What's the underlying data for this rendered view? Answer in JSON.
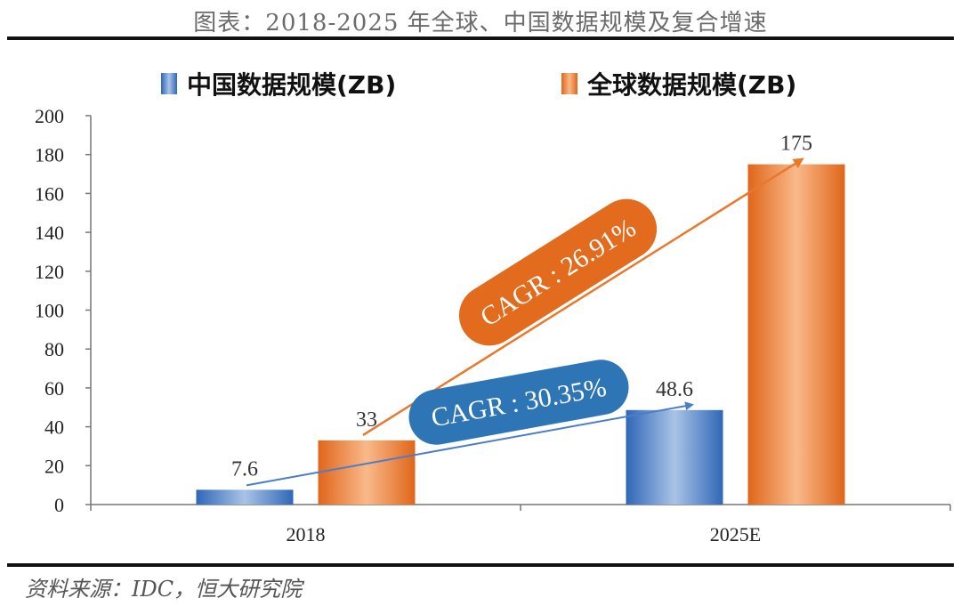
{
  "title": "图表：2018-2025 年全球、中国数据规模及复合增速",
  "source": "资料来源：IDC，恒大研究院",
  "chart_data": {
    "type": "bar",
    "categories": [
      "2018",
      "2025E"
    ],
    "series": [
      {
        "name": "中国数据规模(ZB)",
        "values": [
          7.6,
          48.6
        ],
        "color": "#4a7ec9"
      },
      {
        "name": "全球数据规模(ZB)",
        "values": [
          33,
          175
        ],
        "color": "#e8782c"
      }
    ],
    "value_labels": [
      [
        "7.6",
        "48.6"
      ],
      [
        "33",
        "175"
      ]
    ],
    "ylim": [
      0,
      200
    ],
    "yticks": [
      0,
      20,
      40,
      60,
      80,
      100,
      120,
      140,
      160,
      180,
      200
    ],
    "xlabel": "",
    "ylabel": "",
    "grid": false,
    "legend_position": "top",
    "annotations": [
      {
        "text": "CAGR : 30.35%",
        "series": "中国数据规模(ZB)",
        "color": "#2e75b6"
      },
      {
        "text": "CAGR : 26.91%",
        "series": "全球数据规模(ZB)",
        "color": "#e26b1d"
      }
    ]
  }
}
